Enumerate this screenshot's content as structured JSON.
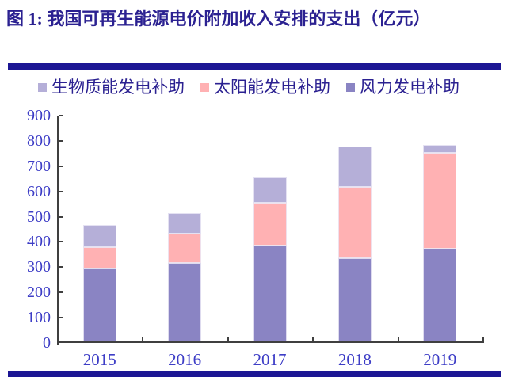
{
  "title": "图 1: 我国可再生能源电价附加收入安排的支出（亿元）",
  "colors": {
    "divider": "#1c1694",
    "title_text": "#2b2191",
    "axis_text": "#3d3dc6",
    "axis_line": "#3f3f3f"
  },
  "chart_data": {
    "type": "bar",
    "stacked": true,
    "title": "我国可再生能源电价附加收入安排的支出",
    "unit": "亿元",
    "categories": [
      "2015",
      "2016",
      "2017",
      "2018",
      "2019"
    ],
    "series": [
      {
        "name": "风力发电补助",
        "color": "#8a84c3",
        "values": [
          290,
          310,
          380,
          328,
          368
        ]
      },
      {
        "name": "太阳能发电补助",
        "color": "#ffb1b3",
        "values": [
          82,
          115,
          170,
          285,
          378
        ]
      },
      {
        "name": "生物质能发电补助",
        "color": "#b5afd8",
        "values": [
          89,
          82,
          100,
          157,
          33
        ]
      }
    ],
    "totals": [
      461,
      507,
      650,
      770,
      779
    ],
    "legend": [
      "生物质能发电补助",
      "太阳能发电补助",
      "风力发电补助"
    ],
    "legend_position": "top",
    "ylim": [
      0,
      900
    ],
    "ytick_step": 100,
    "grid": false
  }
}
